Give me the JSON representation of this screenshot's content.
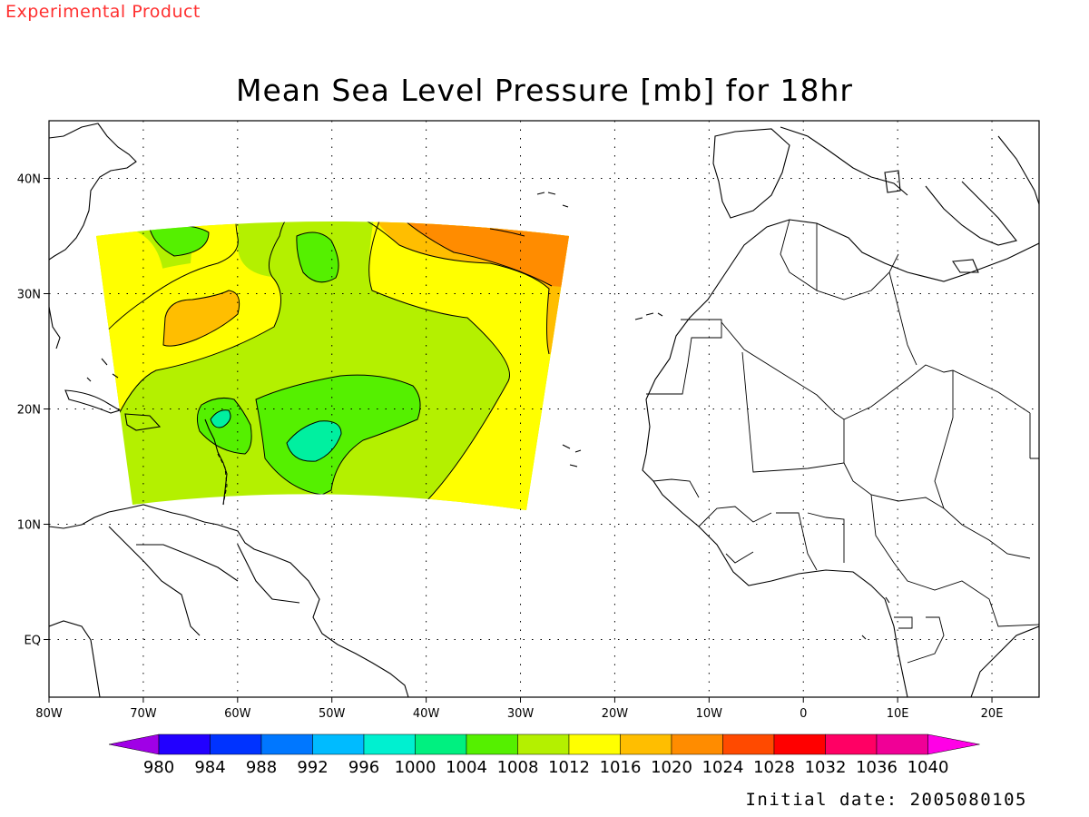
{
  "header": {
    "corner_label": "Experimental Product",
    "title": "Mean Sea Level Pressure [mb] for 18hr"
  },
  "footer": {
    "initial_date": "Initial date: 2005080105"
  },
  "map": {
    "extent": {
      "lon_min": -80,
      "lon_max": 25,
      "lat_min": -5,
      "lat_max": 45
    },
    "lon_ticks": [
      {
        "value": -80,
        "label": "80W"
      },
      {
        "value": -70,
        "label": "70W"
      },
      {
        "value": -60,
        "label": "60W"
      },
      {
        "value": -50,
        "label": "50W"
      },
      {
        "value": -40,
        "label": "40W"
      },
      {
        "value": -30,
        "label": "30W"
      },
      {
        "value": -20,
        "label": "20W"
      },
      {
        "value": -10,
        "label": "10W"
      },
      {
        "value": 0,
        "label": "0"
      },
      {
        "value": 10,
        "label": "10E"
      },
      {
        "value": 20,
        "label": "20E"
      }
    ],
    "lat_ticks": [
      {
        "value": 40,
        "label": "40N"
      },
      {
        "value": 30,
        "label": "30N"
      },
      {
        "value": 20,
        "label": "20N"
      },
      {
        "value": 10,
        "label": "10N"
      },
      {
        "value": 0,
        "label": "EQ"
      }
    ],
    "gridlines": true
  },
  "colorbar": {
    "labels": [
      "980",
      "984",
      "988",
      "992",
      "996",
      "1000",
      "1004",
      "1008",
      "1012",
      "1016",
      "1020",
      "1024",
      "1028",
      "1032",
      "1036",
      "1040"
    ],
    "colors": [
      "#a000e6",
      "#2200ff",
      "#0033ff",
      "#0077ff",
      "#00bbff",
      "#00f0d0",
      "#00f080",
      "#55f000",
      "#b4f000",
      "#ffff00",
      "#ffbe00",
      "#ff8c00",
      "#ff4a00",
      "#ff0000",
      "#ff0064",
      "#f00096",
      "#ff00e6"
    ]
  },
  "fill_colors": {
    "c1004": "#00f0a0",
    "c1008": "#55f000",
    "c1012": "#b4f000",
    "c1016": "#ffff00",
    "c1020": "#ffbe00",
    "c1024": "#ff8c00"
  }
}
